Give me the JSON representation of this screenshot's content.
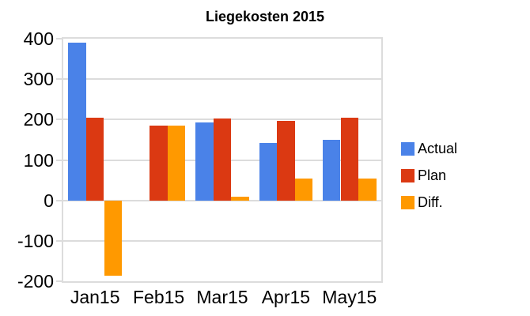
{
  "chart_data": {
    "type": "bar",
    "title": "Liegekosten 2015",
    "xlabel": "",
    "ylabel": "",
    "categories": [
      "Jan15",
      "Feb15",
      "Mar15",
      "Apr15",
      "May15"
    ],
    "series": [
      {
        "name": "Actual",
        "color": "#4a82e8",
        "values": [
          390,
          0,
          193,
          142,
          150
        ]
      },
      {
        "name": "Plan",
        "color": "#db3912",
        "values": [
          204,
          185,
          203,
          196,
          204
        ]
      },
      {
        "name": "Diff.",
        "color": "#ff9900",
        "values": [
          -186,
          185,
          10,
          54,
          54
        ]
      }
    ],
    "ylim": [
      -200,
      400
    ],
    "yticks": [
      400,
      300,
      200,
      100,
      0,
      -100,
      -200
    ],
    "grid": true,
    "legend_position": "right"
  },
  "colors": {
    "grid": "#dcdcdc",
    "axis_text": "#000000",
    "title_text": "#000000",
    "background": "#ffffff"
  }
}
